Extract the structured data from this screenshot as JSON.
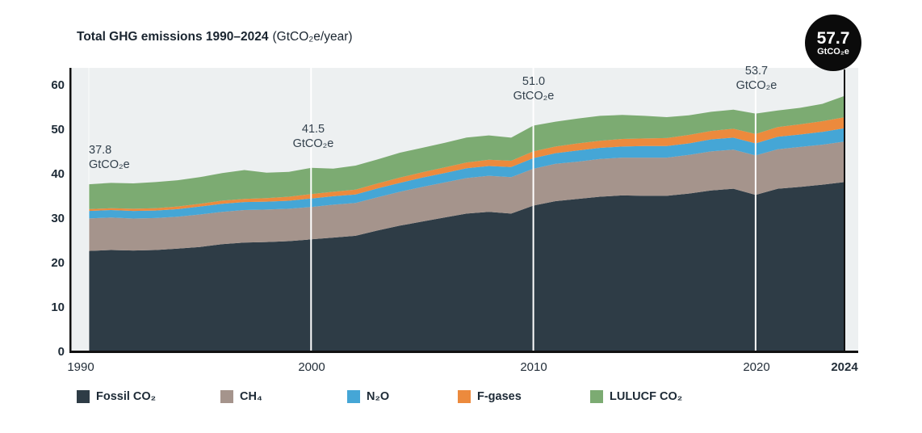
{
  "title": {
    "main": "Total GHG emissions 1990–2024",
    "unit": "(GtCO₂e/year)"
  },
  "badge": {
    "value": "57.7",
    "unit": "GtCO₂e"
  },
  "y_axis": {
    "ticks": [
      0,
      10,
      20,
      30,
      40,
      50,
      60
    ]
  },
  "x_axis": {
    "labels": [
      "1990",
      "2000",
      "2010",
      "2020",
      "2024"
    ]
  },
  "annotations": [
    {
      "year": "1990",
      "value": "37.8",
      "unit": "GtCO₂e"
    },
    {
      "year": "2000",
      "value": "41.5",
      "unit": "GtCO₂e"
    },
    {
      "year": "2010",
      "value": "51.0",
      "unit": "GtCO₂e"
    },
    {
      "year": "2020",
      "value": "53.7",
      "unit": "GtCO₂e"
    }
  ],
  "legend": [
    {
      "label": "Fossil CO₂",
      "color": "#2e3c46"
    },
    {
      "label": "CH₄",
      "color": "#a5948c"
    },
    {
      "label": "N₂O",
      "color": "#45a6d6"
    },
    {
      "label": "F-gases",
      "color": "#ec8a3d"
    },
    {
      "label": "LULUCF CO₂",
      "color": "#7cab72"
    }
  ],
  "colors": {
    "plot_background": "#edf0f1",
    "axis": "#111111",
    "gridline": "#ffffff",
    "endline_2024": "#111111"
  },
  "chart_data": {
    "type": "area",
    "stacked": true,
    "title": "Total GHG emissions 1990–2024 (GtCO₂e/year)",
    "xlabel": "",
    "ylabel": "GtCO₂e/year",
    "xlim": [
      1990,
      2024
    ],
    "ylim": [
      0,
      63
    ],
    "grid_vertical_years": [
      2000,
      2010,
      2020
    ],
    "legend_position": "bottom",
    "x": [
      1990,
      1991,
      1992,
      1993,
      1994,
      1995,
      1996,
      1997,
      1998,
      1999,
      2000,
      2001,
      2002,
      2003,
      2004,
      2005,
      2006,
      2007,
      2008,
      2009,
      2010,
      2011,
      2012,
      2013,
      2014,
      2015,
      2016,
      2017,
      2018,
      2019,
      2020,
      2021,
      2022,
      2023,
      2024
    ],
    "series": [
      {
        "name": "Fossil CO₂",
        "color": "#2e3c46",
        "values": [
          22.8,
          23.0,
          22.9,
          23.0,
          23.3,
          23.7,
          24.3,
          24.7,
          24.8,
          25.0,
          25.4,
          25.8,
          26.2,
          27.4,
          28.5,
          29.4,
          30.3,
          31.2,
          31.6,
          31.2,
          33.0,
          34.0,
          34.5,
          35.0,
          35.3,
          35.2,
          35.2,
          35.7,
          36.4,
          36.8,
          35.4,
          36.8,
          37.2,
          37.7,
          38.3
        ]
      },
      {
        "name": "CH₄",
        "color": "#a5948c",
        "values": [
          7.3,
          7.3,
          7.2,
          7.2,
          7.2,
          7.3,
          7.3,
          7.3,
          7.3,
          7.3,
          7.3,
          7.4,
          7.4,
          7.5,
          7.6,
          7.8,
          7.9,
          8.0,
          8.1,
          8.2,
          8.3,
          8.4,
          8.4,
          8.5,
          8.5,
          8.6,
          8.6,
          8.7,
          8.8,
          8.8,
          8.9,
          8.9,
          9.0,
          9.0,
          9.1
        ]
      },
      {
        "name": "N₂O",
        "color": "#45a6d6",
        "values": [
          1.7,
          1.7,
          1.7,
          1.7,
          1.7,
          1.8,
          1.8,
          1.8,
          1.8,
          1.8,
          1.9,
          1.9,
          1.9,
          2.0,
          2.0,
          2.1,
          2.1,
          2.2,
          2.2,
          2.3,
          2.4,
          2.4,
          2.5,
          2.5,
          2.5,
          2.6,
          2.6,
          2.6,
          2.7,
          2.7,
          2.7,
          2.8,
          2.8,
          2.9,
          3.0
        ]
      },
      {
        "name": "F-gases",
        "color": "#ec8a3d",
        "values": [
          0.4,
          0.4,
          0.5,
          0.5,
          0.6,
          0.6,
          0.7,
          0.7,
          0.8,
          0.9,
          1.0,
          1.0,
          1.1,
          1.1,
          1.2,
          1.2,
          1.3,
          1.3,
          1.4,
          1.4,
          1.5,
          1.5,
          1.6,
          1.6,
          1.7,
          1.7,
          1.8,
          1.9,
          1.9,
          2.0,
          2.1,
          2.2,
          2.3,
          2.4,
          2.5
        ]
      },
      {
        "name": "LULUCF CO₂",
        "color": "#7cab72",
        "values": [
          5.6,
          5.7,
          5.7,
          5.9,
          5.9,
          6.0,
          6.2,
          6.5,
          5.7,
          5.6,
          5.9,
          5.2,
          5.4,
          5.4,
          5.6,
          5.5,
          5.5,
          5.6,
          5.5,
          5.2,
          5.8,
          5.6,
          5.6,
          5.6,
          5.4,
          5.1,
          4.7,
          4.4,
          4.3,
          4.3,
          4.6,
          3.7,
          3.7,
          3.9,
          4.8
        ]
      }
    ],
    "labeled_totals": [
      {
        "year": 1990,
        "total": 37.8
      },
      {
        "year": 2000,
        "total": 41.5
      },
      {
        "year": 2010,
        "total": 51.0
      },
      {
        "year": 2020,
        "total": 53.7
      },
      {
        "year": 2024,
        "total": 57.7
      }
    ]
  }
}
